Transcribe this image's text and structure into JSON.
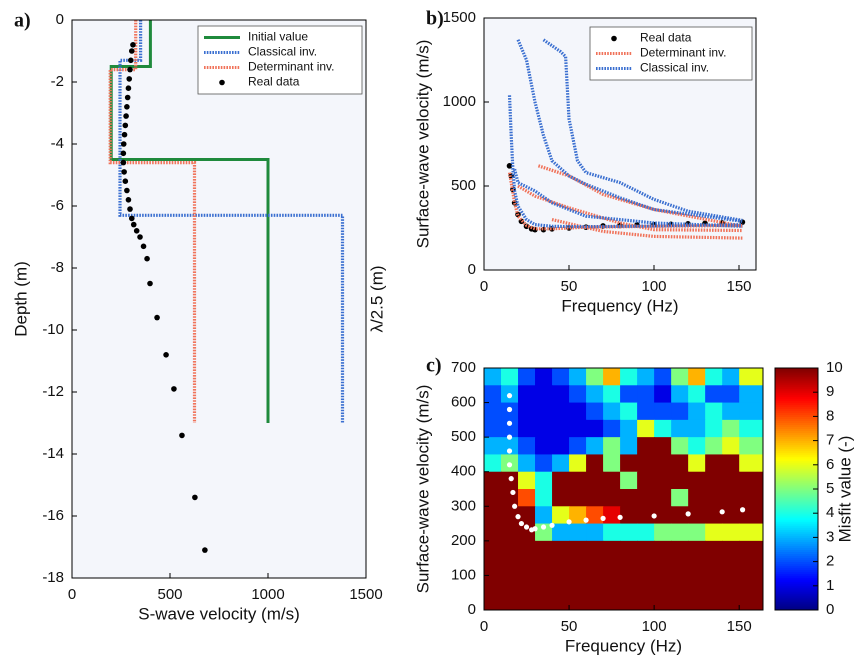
{
  "chart_data": [
    {
      "type": "line",
      "panel_label": "a)",
      "xlabel": "S-wave velocity (m/s)",
      "ylabel": "Depth (m)",
      "y2label": "λ/2.5 (m)",
      "xlim": [
        0,
        1500
      ],
      "ylim": [
        -18,
        0
      ],
      "xticks": [
        0,
        500,
        1000,
        1500
      ],
      "yticks": [
        0,
        -2,
        -4,
        -6,
        -8,
        -10,
        -12,
        -14,
        -16,
        -18
      ],
      "legend": "upper right",
      "series": [
        {
          "name": "Initial value",
          "color": "#1f8a3c",
          "style": "solid",
          "x": [
            400,
            400,
            200,
            200,
            1000,
            1000
          ],
          "values": [
            0,
            -1.5,
            -1.5,
            -4.5,
            -4.5,
            -13
          ]
        },
        {
          "name": "Classical inv.",
          "color": "#3a6fd0",
          "style": "dotted",
          "x": [
            350,
            350,
            245,
            245,
            1380,
            1380
          ],
          "values": [
            0,
            -1.3,
            -1.3,
            -6.3,
            -6.3,
            -13
          ]
        },
        {
          "name": "Determinant inv.",
          "color": "#f0735a",
          "style": "dotted",
          "x": [
            325,
            325,
            195,
            195,
            625,
            625
          ],
          "values": [
            0,
            -1.6,
            -1.6,
            -4.6,
            -4.6,
            -13
          ]
        },
        {
          "name": "Real data",
          "color": "#000000",
          "style": "markers",
          "x": [
            311,
            305,
            300,
            296,
            292,
            288,
            284,
            280,
            276,
            272,
            268,
            264,
            262,
            262,
            266,
            272,
            280,
            288,
            296,
            305,
            315,
            330,
            347,
            365,
            383,
            398,
            434,
            480,
            520,
            561,
            627,
            678
          ],
          "values": [
            -0.8,
            -1.0,
            -1.3,
            -1.6,
            -1.9,
            -2.2,
            -2.5,
            -2.8,
            -3.1,
            -3.4,
            -3.7,
            -4.0,
            -4.3,
            -4.6,
            -4.9,
            -5.2,
            -5.5,
            -5.8,
            -6.1,
            -6.4,
            -6.6,
            -6.8,
            -7.0,
            -7.3,
            -7.7,
            -8.5,
            -9.6,
            -10.8,
            -11.9,
            -13.4,
            -15.4,
            -17.1
          ]
        }
      ]
    },
    {
      "type": "line",
      "panel_label": "b)",
      "xlabel": "Frequency (Hz)",
      "ylabel": "Surface-wave velocity (m/s)",
      "xlim": [
        0,
        160
      ],
      "ylim": [
        0,
        1500
      ],
      "xticks": [
        0,
        50,
        100,
        150
      ],
      "yticks": [
        0,
        500,
        1000,
        1500
      ],
      "legend": "upper right",
      "series": [
        {
          "name": "Real data",
          "color": "#000000",
          "style": "markers",
          "x": [
            15,
            16,
            17,
            18,
            20,
            22,
            25,
            28,
            30,
            35,
            40,
            50,
            60,
            70,
            80,
            90,
            100,
            110,
            120,
            130,
            140,
            152
          ],
          "values": [
            620,
            560,
            480,
            400,
            330,
            290,
            260,
            245,
            240,
            240,
            245,
            250,
            255,
            262,
            265,
            268,
            270,
            272,
            275,
            278,
            280,
            285
          ]
        },
        {
          "name": "Determinant inv.",
          "color": "#f0735a",
          "style": "dotted",
          "x": [
            15,
            18,
            20,
            25,
            30,
            40,
            60,
            100,
            152,
            null,
            32,
            50,
            70,
            100,
            152,
            null,
            20,
            30,
            50,
            80,
            100,
            152,
            null,
            40,
            70,
            100,
            152
          ],
          "values": [
            580,
            400,
            320,
            265,
            245,
            245,
            255,
            260,
            265,
            null,
            620,
            560,
            450,
            360,
            260,
            null,
            500,
            440,
            370,
            280,
            240,
            235,
            null,
            300,
            230,
            200,
            190
          ]
        },
        {
          "name": "Classical inv.",
          "color": "#3a6fd0",
          "style": "dotted",
          "x": [
            15,
            16,
            17,
            18,
            20,
            25,
            30,
            40,
            60,
            100,
            152,
            null,
            20,
            25,
            30,
            35,
            40,
            50,
            60,
            80,
            100,
            152,
            null,
            35,
            45,
            48,
            50,
            55,
            60,
            80,
            100,
            120,
            152,
            null,
            18,
            20,
            30,
            40,
            60,
            100,
            152
          ],
          "values": [
            1040,
            800,
            600,
            470,
            380,
            300,
            270,
            260,
            258,
            262,
            270,
            null,
            1370,
            1250,
            1000,
            800,
            650,
            560,
            510,
            430,
            360,
            290,
            null,
            1370,
            1300,
            1270,
            900,
            650,
            580,
            520,
            420,
            350,
            295,
            null,
            600,
            520,
            470,
            400,
            320,
            280,
            260
          ]
        }
      ]
    },
    {
      "type": "heatmap",
      "panel_label": "c)",
      "xlabel": "Frequency (Hz)",
      "ylabel": "Surface-wave velocity (m/s)",
      "xlim": [
        0,
        164
      ],
      "ylim": [
        0,
        700
      ],
      "xticks": [
        0,
        50,
        100,
        150
      ],
      "yticks": [
        0,
        100,
        200,
        300,
        400,
        500,
        600,
        700
      ],
      "colormap": "jet",
      "x": [
        5,
        15,
        25,
        35,
        45,
        55,
        65,
        75,
        85,
        95,
        105,
        115,
        125,
        135,
        145,
        155
      ],
      "y": [
        675,
        625,
        575,
        525,
        475,
        425,
        375,
        325,
        275,
        225,
        175,
        125,
        75,
        25
      ],
      "z": [
        [
          3,
          4,
          2,
          1,
          2,
          3,
          5,
          7,
          4,
          3,
          2,
          5,
          7,
          4,
          3,
          6
        ],
        [
          2,
          3,
          1,
          1,
          1,
          2,
          3,
          4,
          2,
          2,
          1,
          3,
          4,
          2,
          2,
          3
        ],
        [
          2,
          2,
          1,
          1,
          1,
          1,
          2,
          3,
          4,
          2,
          2,
          2,
          3,
          4,
          3,
          3
        ],
        [
          2,
          2,
          1,
          1,
          1,
          1,
          1,
          2,
          3,
          6,
          4,
          3,
          3,
          4,
          5,
          4
        ],
        [
          3,
          3,
          2,
          1,
          1,
          2,
          3,
          5,
          3,
          10,
          10,
          5,
          4,
          5,
          6,
          5
        ],
        [
          4,
          5,
          3,
          2,
          3,
          6,
          10,
          5,
          10,
          10,
          10,
          10,
          6,
          10,
          10,
          6
        ],
        [
          10,
          10,
          6,
          4,
          10,
          10,
          10,
          10,
          5,
          10,
          10,
          10,
          10,
          10,
          10,
          10
        ],
        [
          10,
          10,
          8,
          4,
          10,
          10,
          10,
          10,
          10,
          10,
          10,
          5,
          10,
          10,
          10,
          10
        ],
        [
          10,
          10,
          10,
          3,
          6,
          7,
          8,
          9,
          10,
          10,
          10,
          10,
          10,
          10,
          10,
          10
        ],
        [
          10,
          10,
          10,
          5,
          3,
          3,
          3,
          4,
          4,
          4,
          5,
          5,
          5,
          6,
          6,
          6
        ],
        [
          10,
          10,
          10,
          10,
          10,
          10,
          10,
          10,
          10,
          10,
          10,
          10,
          10,
          10,
          10,
          10
        ],
        [
          10,
          10,
          10,
          10,
          10,
          10,
          10,
          10,
          10,
          10,
          10,
          10,
          10,
          10,
          10,
          10
        ],
        [
          10,
          10,
          10,
          10,
          10,
          10,
          10,
          10,
          10,
          10,
          10,
          10,
          10,
          10,
          10,
          10
        ],
        [
          10,
          10,
          10,
          10,
          10,
          10,
          10,
          10,
          10,
          10,
          10,
          10,
          10,
          10,
          10,
          10
        ]
      ],
      "overlay": {
        "color": "#ffffff",
        "x": [
          15,
          15,
          15,
          15,
          15,
          15,
          16,
          17,
          18,
          20,
          22,
          25,
          28,
          30,
          35,
          40,
          50,
          60,
          70,
          80,
          100,
          120,
          140,
          152
        ],
        "values": [
          620,
          580,
          540,
          500,
          460,
          420,
          380,
          340,
          300,
          270,
          250,
          240,
          232,
          235,
          240,
          245,
          255,
          260,
          265,
          268,
          272,
          278,
          284,
          290
        ]
      },
      "colorbar": {
        "label": "Misfit value (-)",
        "lim": [
          0,
          10
        ],
        "ticks": [
          0,
          1,
          2,
          3,
          4,
          5,
          6,
          7,
          8,
          9,
          10
        ]
      }
    }
  ]
}
